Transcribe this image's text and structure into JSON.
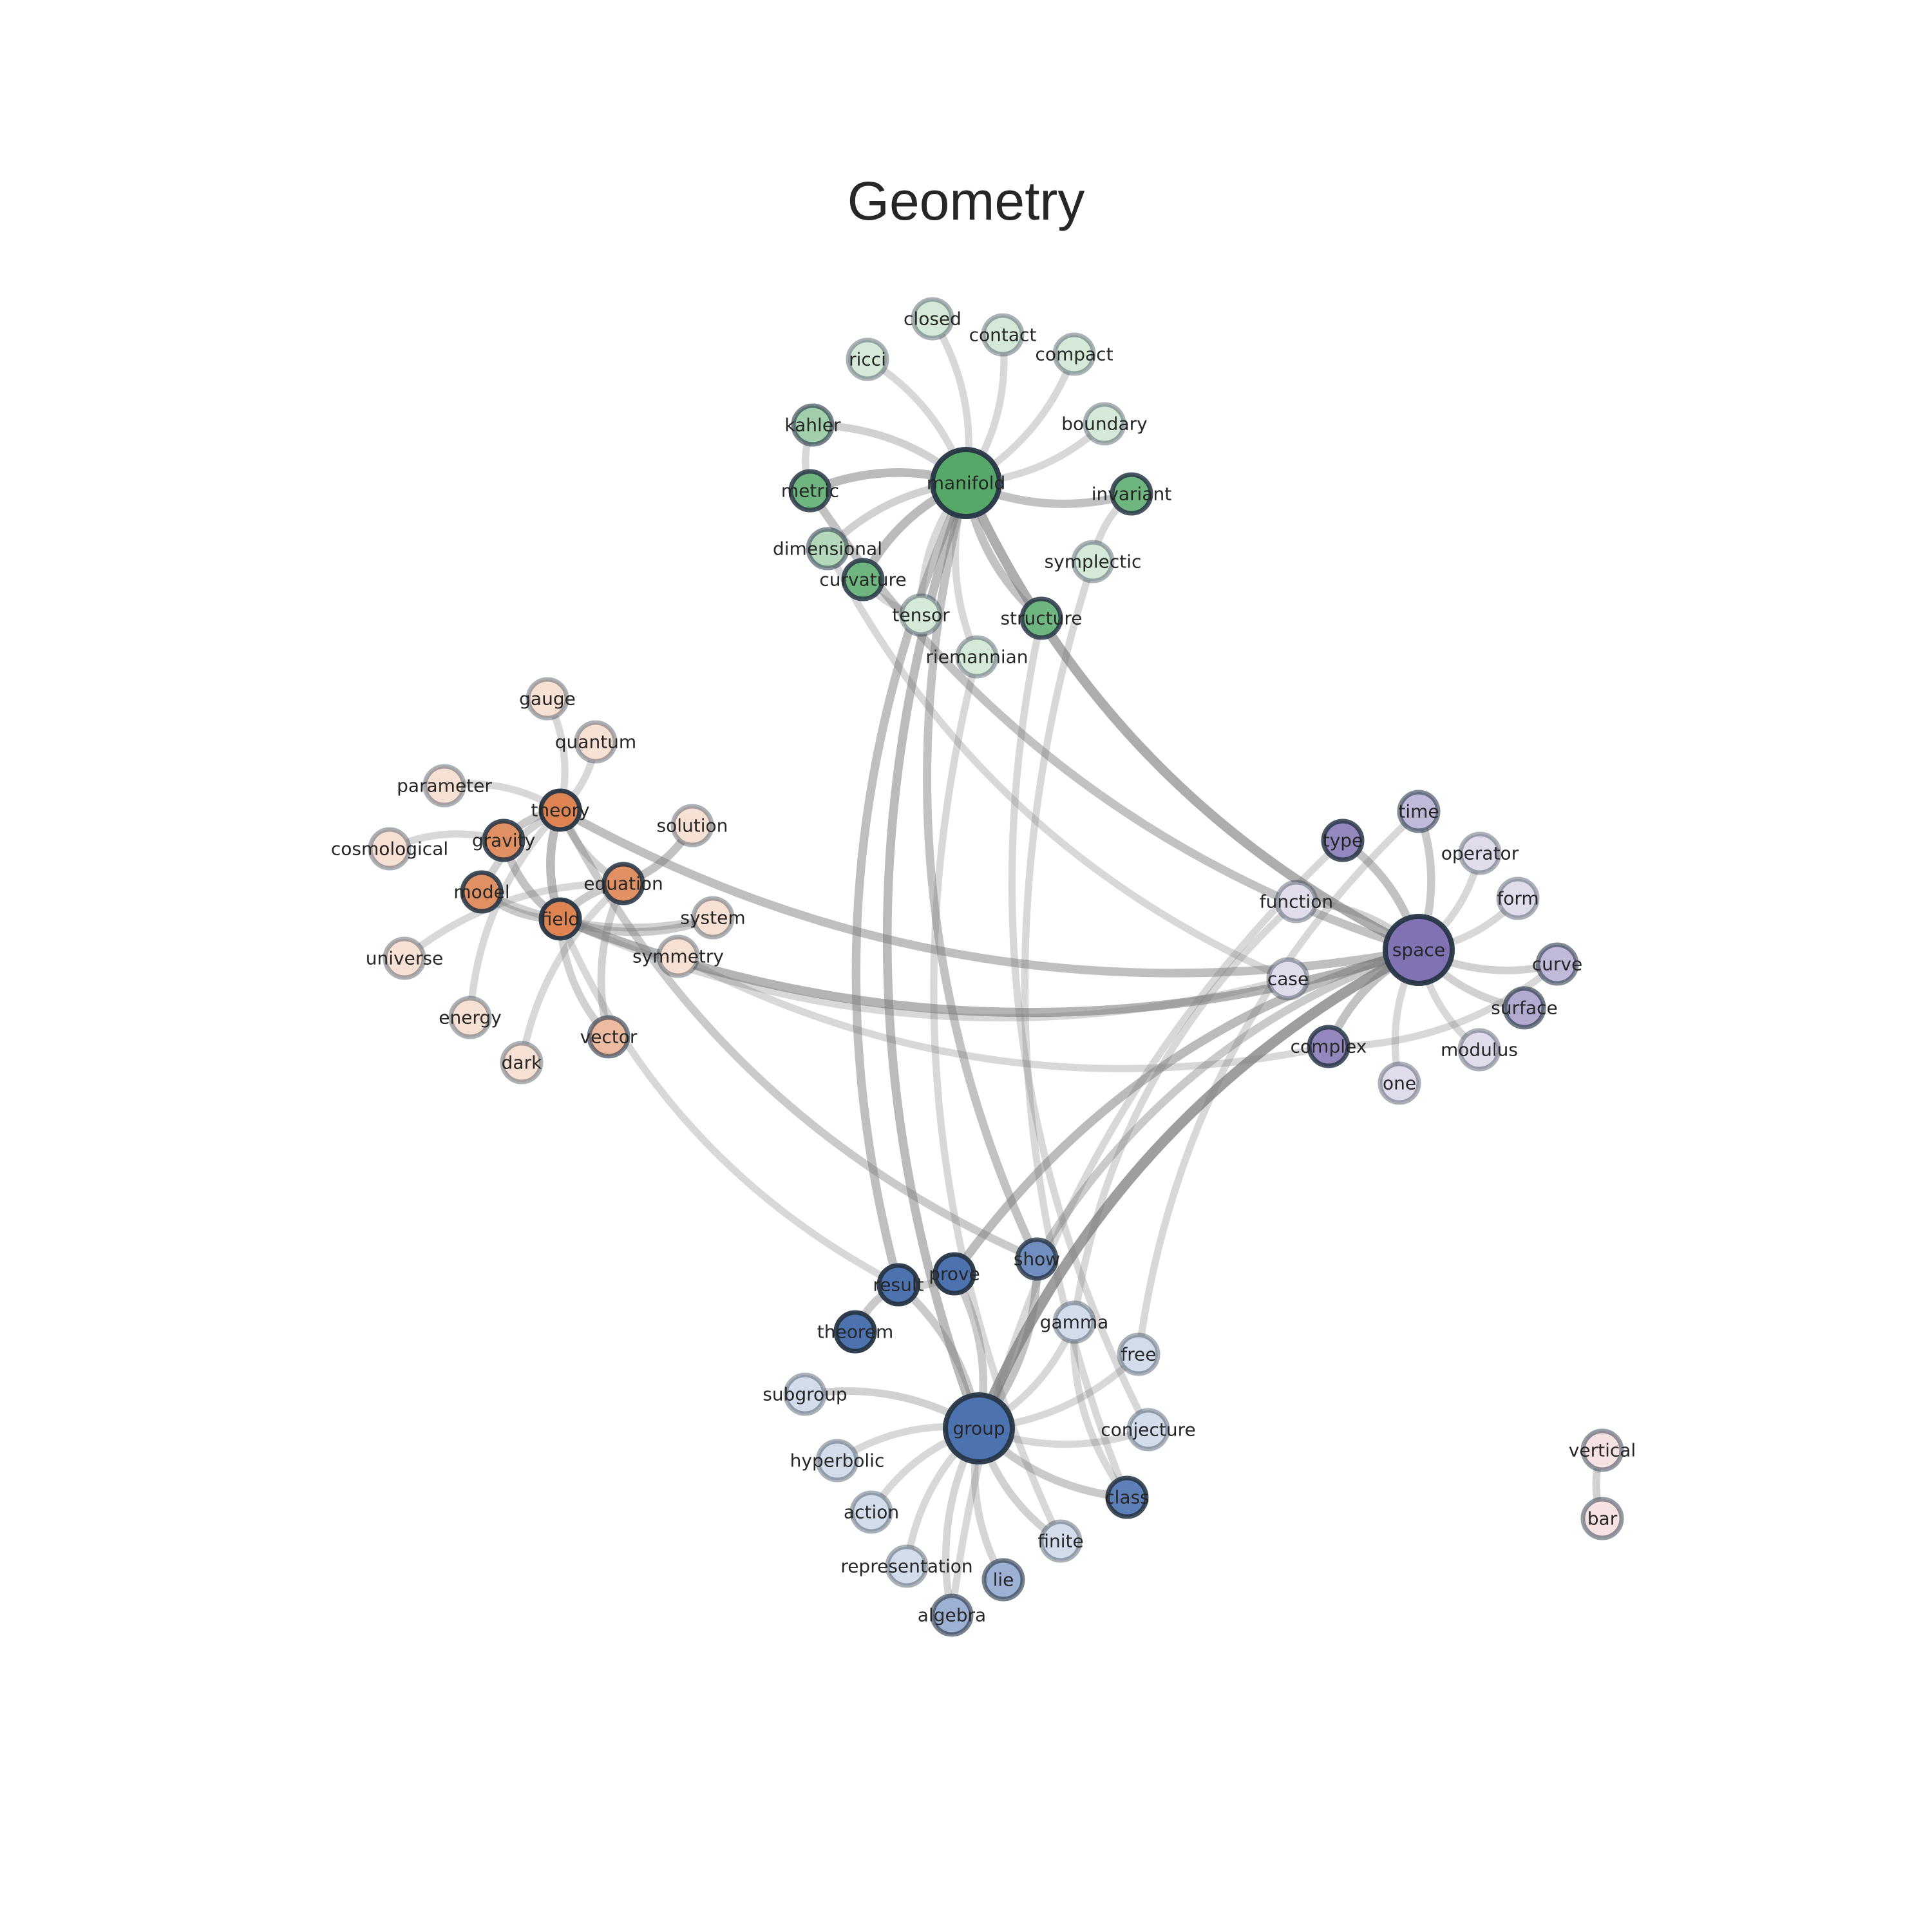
{
  "title": "Geometry",
  "colors": {
    "community-manifold": "#55a868",
    "community-theory": "#dd8452",
    "community-space": "#8172b3",
    "community-group": "#4c72b0",
    "community-vertical": "#e8b4b8",
    "edge": "#7a7a7a",
    "node-outline": "#263545"
  },
  "nodes": [
    {
      "id": "manifold",
      "label": "manifold",
      "community": "manifold",
      "hub": true,
      "shade": 1.0
    },
    {
      "id": "closed",
      "label": "closed",
      "community": "manifold",
      "shade": 0.25
    },
    {
      "id": "contact",
      "label": "contact",
      "community": "manifold",
      "shade": 0.25
    },
    {
      "id": "compact",
      "label": "compact",
      "community": "manifold",
      "shade": 0.25
    },
    {
      "id": "ricci",
      "label": "ricci",
      "community": "manifold",
      "shade": 0.25
    },
    {
      "id": "boundary",
      "label": "boundary",
      "community": "manifold",
      "shade": 0.25
    },
    {
      "id": "kahler",
      "label": "kahler",
      "community": "manifold",
      "shade": 0.55
    },
    {
      "id": "metric",
      "label": "metric",
      "community": "manifold",
      "shade": 0.85
    },
    {
      "id": "invariant",
      "label": "invariant",
      "community": "manifold",
      "shade": 0.85
    },
    {
      "id": "dimensional",
      "label": "dimensional",
      "community": "manifold",
      "shade": 0.45
    },
    {
      "id": "symplectic",
      "label": "symplectic",
      "community": "manifold",
      "shade": 0.25
    },
    {
      "id": "curvature",
      "label": "curvature",
      "community": "manifold",
      "shade": 0.85
    },
    {
      "id": "tensor",
      "label": "tensor",
      "community": "manifold",
      "shade": 0.25
    },
    {
      "id": "structure",
      "label": "structure",
      "community": "manifold",
      "shade": 0.85
    },
    {
      "id": "riemannian",
      "label": "riemannian",
      "community": "manifold",
      "shade": 0.25
    },
    {
      "id": "gauge",
      "label": "gauge",
      "community": "theory",
      "shade": 0.25
    },
    {
      "id": "quantum",
      "label": "quantum",
      "community": "theory",
      "shade": 0.25
    },
    {
      "id": "parameter",
      "label": "parameter",
      "community": "theory",
      "shade": 0.25
    },
    {
      "id": "theory",
      "label": "theory",
      "community": "theory",
      "shade": 1.0
    },
    {
      "id": "solution",
      "label": "solution",
      "community": "theory",
      "shade": 0.25
    },
    {
      "id": "cosmological",
      "label": "cosmological",
      "community": "theory",
      "shade": 0.25
    },
    {
      "id": "gravity",
      "label": "gravity",
      "community": "theory",
      "shade": 0.9
    },
    {
      "id": "equation",
      "label": "equation",
      "community": "theory",
      "shade": 0.9
    },
    {
      "id": "model",
      "label": "model",
      "community": "theory",
      "shade": 0.9
    },
    {
      "id": "field",
      "label": "field",
      "community": "theory",
      "shade": 1.0
    },
    {
      "id": "system",
      "label": "system",
      "community": "theory",
      "shade": 0.25
    },
    {
      "id": "universe",
      "label": "universe",
      "community": "theory",
      "shade": 0.25
    },
    {
      "id": "symmetry",
      "label": "symmetry",
      "community": "theory",
      "shade": 0.25
    },
    {
      "id": "energy",
      "label": "energy",
      "community": "theory",
      "shade": 0.25
    },
    {
      "id": "vector",
      "label": "vector",
      "community": "theory",
      "shade": 0.55
    },
    {
      "id": "dark",
      "label": "dark",
      "community": "theory",
      "shade": 0.25
    },
    {
      "id": "time",
      "label": "time",
      "community": "space",
      "shade": 0.5
    },
    {
      "id": "type",
      "label": "type",
      "community": "space",
      "shade": 0.85
    },
    {
      "id": "operator",
      "label": "operator",
      "community": "space",
      "shade": 0.25
    },
    {
      "id": "form",
      "label": "form",
      "community": "space",
      "shade": 0.25
    },
    {
      "id": "function",
      "label": "function",
      "community": "space",
      "shade": 0.25
    },
    {
      "id": "space",
      "label": "space",
      "community": "space",
      "hub": true,
      "shade": 1.0
    },
    {
      "id": "curve",
      "label": "curve",
      "community": "space",
      "shade": 0.5
    },
    {
      "id": "case",
      "label": "case",
      "community": "space",
      "shade": 0.25
    },
    {
      "id": "surface",
      "label": "surface",
      "community": "space",
      "shade": 0.6
    },
    {
      "id": "complex",
      "label": "complex",
      "community": "space",
      "shade": 0.85
    },
    {
      "id": "modulus",
      "label": "modulus",
      "community": "space",
      "shade": 0.25
    },
    {
      "id": "one",
      "label": "one",
      "community": "space",
      "shade": 0.25
    },
    {
      "id": "show",
      "label": "show",
      "community": "group",
      "shade": 0.8
    },
    {
      "id": "prove",
      "label": "prove",
      "community": "group",
      "shade": 1.0
    },
    {
      "id": "result",
      "label": "result",
      "community": "group",
      "shade": 1.0
    },
    {
      "id": "theorem",
      "label": "theorem",
      "community": "group",
      "shade": 1.0
    },
    {
      "id": "gamma",
      "label": "gamma",
      "community": "group",
      "shade": 0.25
    },
    {
      "id": "free",
      "label": "free",
      "community": "group",
      "shade": 0.25
    },
    {
      "id": "subgroup",
      "label": "subgroup",
      "community": "group",
      "shade": 0.25
    },
    {
      "id": "group",
      "label": "group",
      "community": "group",
      "hub": true,
      "shade": 1.0
    },
    {
      "id": "conjecture",
      "label": "conjecture",
      "community": "group",
      "shade": 0.25
    },
    {
      "id": "hyperbolic",
      "label": "hyperbolic",
      "community": "group",
      "shade": 0.25
    },
    {
      "id": "class",
      "label": "class",
      "community": "group",
      "shade": 0.9
    },
    {
      "id": "action",
      "label": "action",
      "community": "group",
      "shade": 0.25
    },
    {
      "id": "finite",
      "label": "finite",
      "community": "group",
      "shade": 0.25
    },
    {
      "id": "representation",
      "label": "representation",
      "community": "group",
      "shade": 0.25
    },
    {
      "id": "lie",
      "label": "lie",
      "community": "group",
      "shade": 0.55
    },
    {
      "id": "algebra",
      "label": "algebra",
      "community": "group",
      "shade": 0.55
    },
    {
      "id": "vertical",
      "label": "vertical",
      "community": "vertical",
      "shade": 0.4
    },
    {
      "id": "bar",
      "label": "bar",
      "community": "vertical",
      "shade": 0.4
    }
  ],
  "edges": [
    {
      "source": "manifold",
      "target": "closed",
      "weight": 0.2
    },
    {
      "source": "manifold",
      "target": "contact",
      "weight": 0.2
    },
    {
      "source": "manifold",
      "target": "compact",
      "weight": 0.2
    },
    {
      "source": "manifold",
      "target": "ricci",
      "weight": 0.2
    },
    {
      "source": "manifold",
      "target": "boundary",
      "weight": 0.2
    },
    {
      "source": "manifold",
      "target": "kahler",
      "weight": 0.3
    },
    {
      "source": "manifold",
      "target": "metric",
      "weight": 0.6
    },
    {
      "source": "manifold",
      "target": "invariant",
      "weight": 0.5
    },
    {
      "source": "manifold",
      "target": "dimensional",
      "weight": 0.3
    },
    {
      "source": "manifold",
      "target": "curvature",
      "weight": 0.6
    },
    {
      "source": "manifold",
      "target": "tensor",
      "weight": 0.2
    },
    {
      "source": "manifold",
      "target": "structure",
      "weight": 0.5
    },
    {
      "source": "manifold",
      "target": "riemannian",
      "weight": 0.2
    },
    {
      "source": "manifold",
      "target": "space",
      "weight": 0.8
    },
    {
      "source": "manifold",
      "target": "group",
      "weight": 0.6
    },
    {
      "source": "manifold",
      "target": "result",
      "weight": 0.55
    },
    {
      "source": "manifold",
      "target": "show",
      "weight": 0.5
    },
    {
      "source": "metric",
      "target": "space",
      "weight": 0.5
    },
    {
      "source": "kahler",
      "target": "metric",
      "weight": 0.2
    },
    {
      "source": "invariant",
      "target": "symplectic",
      "weight": 0.2
    },
    {
      "source": "symplectic",
      "target": "class",
      "weight": 0.2
    },
    {
      "source": "structure",
      "target": "conjecture",
      "weight": 0.2
    },
    {
      "source": "curvature",
      "target": "tensor",
      "weight": 0.2
    },
    {
      "source": "riemannian",
      "target": "finite",
      "weight": 0.2
    },
    {
      "source": "dimensional",
      "target": "case",
      "weight": 0.2
    },
    {
      "source": "theory",
      "target": "gauge",
      "weight": 0.2
    },
    {
      "source": "theory",
      "target": "quantum",
      "weight": 0.2
    },
    {
      "source": "theory",
      "target": "parameter",
      "weight": 0.2
    },
    {
      "source": "theory",
      "target": "gravity",
      "weight": 0.4
    },
    {
      "source": "theory",
      "target": "field",
      "weight": 0.6
    },
    {
      "source": "theory",
      "target": "model",
      "weight": 0.3
    },
    {
      "source": "theory",
      "target": "equation",
      "weight": 0.3
    },
    {
      "source": "theory",
      "target": "space",
      "weight": 0.55
    },
    {
      "source": "theory",
      "target": "show",
      "weight": 0.4
    },
    {
      "source": "theory",
      "target": "energy",
      "weight": 0.2
    },
    {
      "source": "gravity",
      "target": "field",
      "weight": 0.5
    },
    {
      "source": "gravity",
      "target": "cosmological",
      "weight": 0.2
    },
    {
      "source": "equation",
      "target": "solution",
      "weight": 0.5
    },
    {
      "source": "equation",
      "target": "field",
      "weight": 0.4
    },
    {
      "source": "equation",
      "target": "vector",
      "weight": 0.3
    },
    {
      "source": "equation",
      "target": "dark",
      "weight": 0.2
    },
    {
      "source": "equation",
      "target": "universe",
      "weight": 0.2
    },
    {
      "source": "model",
      "target": "field",
      "weight": 0.4
    },
    {
      "source": "model",
      "target": "system",
      "weight": 0.3
    },
    {
      "source": "field",
      "target": "system",
      "weight": 0.4
    },
    {
      "source": "field",
      "target": "space",
      "weight": 0.7
    },
    {
      "source": "field",
      "target": "vector",
      "weight": 0.3
    },
    {
      "source": "field",
      "target": "case",
      "weight": 0.2
    },
    {
      "source": "field",
      "target": "result",
      "weight": 0.2
    },
    {
      "source": "symmetry",
      "target": "complex",
      "weight": 0.2
    },
    {
      "source": "space",
      "target": "time",
      "weight": 0.4
    },
    {
      "source": "space",
      "target": "type",
      "weight": 0.5
    },
    {
      "source": "space",
      "target": "operator",
      "weight": 0.2
    },
    {
      "source": "space",
      "target": "form",
      "weight": 0.2
    },
    {
      "source": "space",
      "target": "function",
      "weight": 0.3
    },
    {
      "source": "space",
      "target": "curve",
      "weight": 0.3
    },
    {
      "source": "space",
      "target": "surface",
      "weight": 0.3
    },
    {
      "source": "space",
      "target": "modulus",
      "weight": 0.2
    },
    {
      "source": "space",
      "target": "one",
      "weight": 0.2
    },
    {
      "source": "space",
      "target": "complex",
      "weight": 0.5
    },
    {
      "source": "space",
      "target": "group",
      "weight": 1.0
    },
    {
      "source": "space",
      "target": "prove",
      "weight": 0.6
    },
    {
      "source": "space",
      "target": "show",
      "weight": 0.4
    },
    {
      "source": "complex",
      "target": "curve",
      "weight": 0.2
    },
    {
      "source": "type",
      "target": "algebra",
      "weight": 0.2
    },
    {
      "source": "time",
      "target": "free",
      "weight": 0.2
    },
    {
      "source": "function",
      "target": "gamma",
      "weight": 0.2
    },
    {
      "source": "group",
      "target": "prove",
      "weight": 0.4
    },
    {
      "source": "group",
      "target": "result",
      "weight": 0.4
    },
    {
      "source": "group",
      "target": "show",
      "weight": 0.5
    },
    {
      "source": "group",
      "target": "gamma",
      "weight": 0.2
    },
    {
      "source": "group",
      "target": "free",
      "weight": 0.2
    },
    {
      "source": "group",
      "target": "subgroup",
      "weight": 0.3
    },
    {
      "source": "group",
      "target": "conjecture",
      "weight": 0.2
    },
    {
      "source": "group",
      "target": "hyperbolic",
      "weight": 0.2
    },
    {
      "source": "group",
      "target": "class",
      "weight": 0.4
    },
    {
      "source": "group",
      "target": "action",
      "weight": 0.2
    },
    {
      "source": "group",
      "target": "finite",
      "weight": 0.3
    },
    {
      "source": "group",
      "target": "representation",
      "weight": 0.2
    },
    {
      "source": "group",
      "target": "lie",
      "weight": 0.25
    },
    {
      "source": "group",
      "target": "algebra",
      "weight": 0.25
    },
    {
      "source": "result",
      "target": "theorem",
      "weight": 0.4
    },
    {
      "source": "result",
      "target": "prove",
      "weight": 0.3
    },
    {
      "source": "gamma",
      "target": "class",
      "weight": 0.2
    },
    {
      "source": "vertical",
      "target": "bar",
      "weight": 0.3
    }
  ]
}
